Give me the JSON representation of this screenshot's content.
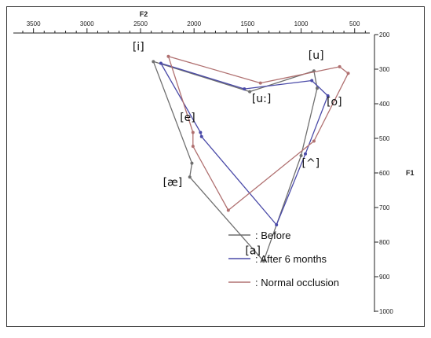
{
  "chart_data": {
    "type": "scatter",
    "xlabel": "F2",
    "ylabel": "F1",
    "x_ticks": [
      "3500",
      "3000",
      "2500",
      "2000",
      "1500",
      "1000",
      "500"
    ],
    "x_tick_values": [
      3500,
      3000,
      2500,
      2000,
      1500,
      1000,
      500
    ],
    "y_ticks": [
      "200",
      "300",
      "400",
      "500",
      "600",
      "700",
      "800",
      "900",
      "1000"
    ],
    "y_tick_values": [
      200,
      300,
      400,
      500,
      600,
      700,
      800,
      900,
      1000
    ],
    "xlim": [
      3600,
      300
    ],
    "ylim": [
      200,
      1000
    ],
    "x_reversed": true,
    "y_reversed": true,
    "vowel_labels": [
      {
        "text": "[i]",
        "x": 2520,
        "y": 245
      },
      {
        "text": "[u]",
        "x": 860,
        "y": 270
      },
      {
        "text": "[u:]",
        "x": 1370,
        "y": 395
      },
      {
        "text": "[o]",
        "x": 690,
        "y": 405
      },
      {
        "text": "[e]",
        "x": 2060,
        "y": 450
      },
      {
        "text": "[^]",
        "x": 910,
        "y": 582
      },
      {
        "text": "[æ]",
        "x": 2200,
        "y": 637
      },
      {
        "text": "[a]",
        "x": 1450,
        "y": 835
      }
    ],
    "series": [
      {
        "name": ": Before",
        "color": "#6f6f6f",
        "points": [
          {
            "vowel": "i",
            "x": 2380,
            "y": 278
          },
          {
            "vowel": "u:",
            "x": 1480,
            "y": 365
          },
          {
            "vowel": "u",
            "x": 880,
            "y": 305
          },
          {
            "vowel": "o",
            "x": 850,
            "y": 355
          },
          {
            "vowel": "^",
            "x": 1000,
            "y": 550
          },
          {
            "vowel": "a",
            "x": 1350,
            "y": 855
          },
          {
            "vowel": "æ",
            "x": 2040,
            "y": 612
          },
          {
            "vowel": "e",
            "x": 2020,
            "y": 572
          }
        ]
      },
      {
        "name": ": After 6 months",
        "color": "#4a4aa8",
        "points": [
          {
            "vowel": "i",
            "x": 2310,
            "y": 283
          },
          {
            "vowel": "u:",
            "x": 1530,
            "y": 357
          },
          {
            "vowel": "u",
            "x": 900,
            "y": 333
          },
          {
            "vowel": "o",
            "x": 750,
            "y": 377
          },
          {
            "vowel": "^",
            "x": 960,
            "y": 545
          },
          {
            "vowel": "a",
            "x": 1230,
            "y": 750
          },
          {
            "vowel": "æ",
            "x": 1930,
            "y": 495
          },
          {
            "vowel": "e",
            "x": 1940,
            "y": 483
          }
        ]
      },
      {
        "name": ": Normal occlusion",
        "color": "#b07070",
        "points": [
          {
            "vowel": "i",
            "x": 2240,
            "y": 263
          },
          {
            "vowel": "u:",
            "x": 1380,
            "y": 340
          },
          {
            "vowel": "u",
            "x": 640,
            "y": 293
          },
          {
            "vowel": "o",
            "x": 560,
            "y": 312
          },
          {
            "vowel": "^",
            "x": 880,
            "y": 508
          },
          {
            "vowel": "a",
            "x": 1680,
            "y": 708
          },
          {
            "vowel": "æ",
            "x": 2010,
            "y": 523
          },
          {
            "vowel": "e",
            "x": 2010,
            "y": 483
          }
        ]
      }
    ]
  }
}
